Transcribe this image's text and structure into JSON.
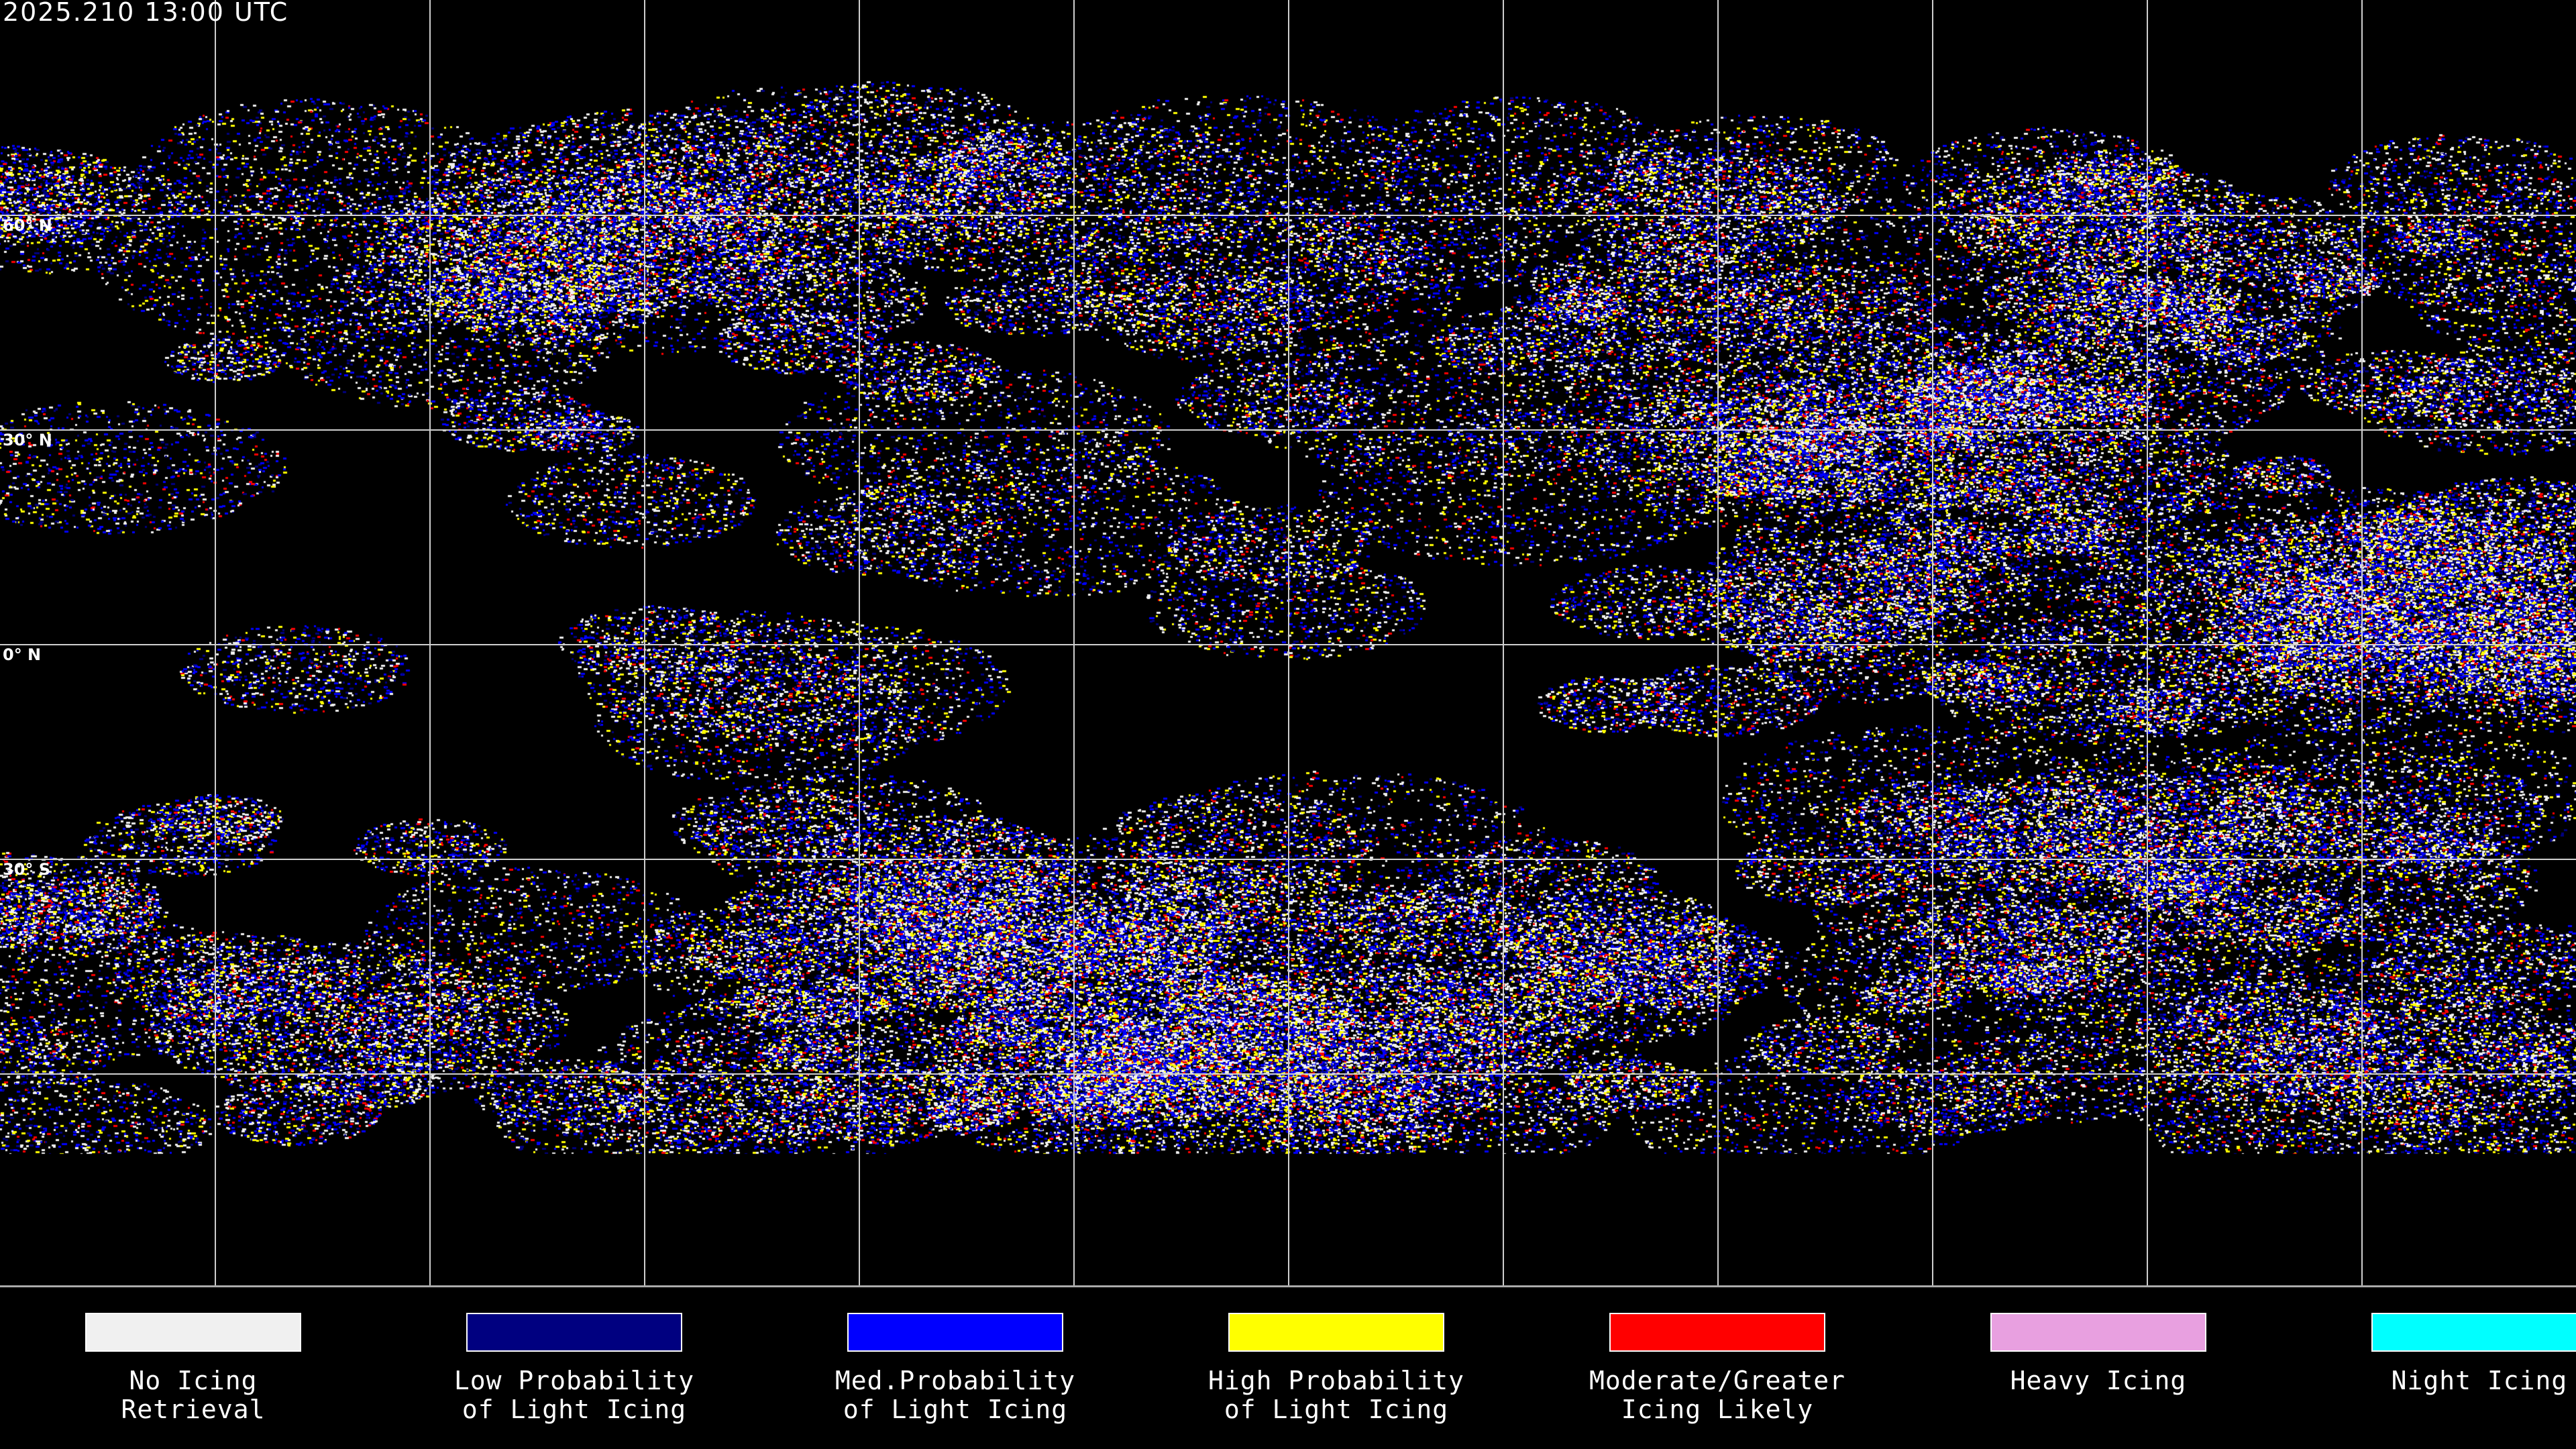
{
  "title": "2025.210 13:00 UTC",
  "map": {
    "projection": "equirectangular",
    "grid_spacing_degrees": 30,
    "lat_labels": [
      "60° N",
      "30° N",
      "0° N",
      "30° S"
    ]
  },
  "legend": [
    {
      "label": "No Icing\nRetrieval",
      "color": "#f0f0f0"
    },
    {
      "label": "Low Probability\nof Light Icing",
      "color": "#000080"
    },
    {
      "label": "Med.Probability\nof Light Icing",
      "color": "#0000ff"
    },
    {
      "label": "High Probability\nof Light Icing",
      "color": "#ffff00"
    },
    {
      "label": "Moderate/Greater\nIcing Likely",
      "color": "#ff0000"
    },
    {
      "label": "Heavy Icing",
      "color": "#e8a0e0"
    },
    {
      "label": "Night Icing",
      "color": "#00ffff"
    }
  ]
}
